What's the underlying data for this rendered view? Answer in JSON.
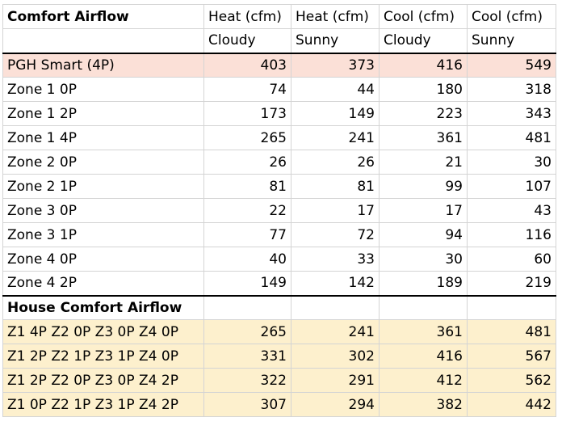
{
  "colors": {
    "highlight_row": "#fbe0d7",
    "combo_rows": "#fdf0cd"
  },
  "title": "Comfort Airflow",
  "columns": [
    {
      "top": "Heat (cfm)",
      "bottom": "Cloudy"
    },
    {
      "top": "Heat (cfm)",
      "bottom": "Sunny"
    },
    {
      "top": "Cool (cfm)",
      "bottom": "Cloudy"
    },
    {
      "top": "Cool (cfm)",
      "bottom": "Sunny"
    }
  ],
  "rows": [
    {
      "label": "PGH Smart (4P)",
      "values": [
        "403",
        "373",
        "416",
        "549"
      ]
    },
    {
      "label": "Zone 1 0P",
      "values": [
        "74",
        "44",
        "180",
        "318"
      ]
    },
    {
      "label": "Zone 1 2P",
      "values": [
        "173",
        "149",
        "223",
        "343"
      ]
    },
    {
      "label": "Zone 1 4P",
      "values": [
        "265",
        "241",
        "361",
        "481"
      ]
    },
    {
      "label": "Zone 2 0P",
      "values": [
        "26",
        "26",
        "21",
        "30"
      ]
    },
    {
      "label": "Zone 2 1P",
      "values": [
        "81",
        "81",
        "99",
        "107"
      ]
    },
    {
      "label": "Zone 3 0P",
      "values": [
        "22",
        "17",
        "17",
        "43"
      ]
    },
    {
      "label": "Zone 3 1P",
      "values": [
        "77",
        "72",
        "94",
        "116"
      ]
    },
    {
      "label": "Zone 4 0P",
      "values": [
        "40",
        "33",
        "30",
        "60"
      ]
    },
    {
      "label": "Zone 4 2P",
      "values": [
        "149",
        "142",
        "189",
        "219"
      ]
    }
  ],
  "section_title": "House Comfort Airflow",
  "combos": [
    {
      "label": "Z1 4P Z2 0P Z3 0P Z4 0P",
      "values": [
        "265",
        "241",
        "361",
        "481"
      ]
    },
    {
      "label": "Z1 2P Z2 1P Z3 1P Z4 0P",
      "values": [
        "331",
        "302",
        "416",
        "567"
      ]
    },
    {
      "label": "Z1 2P Z2 0P Z3 0P Z4 2P",
      "values": [
        "322",
        "291",
        "412",
        "562"
      ]
    },
    {
      "label": "Z1 0P Z2 1P Z3 1P Z4 2P",
      "values": [
        "307",
        "294",
        "382",
        "442"
      ]
    }
  ]
}
